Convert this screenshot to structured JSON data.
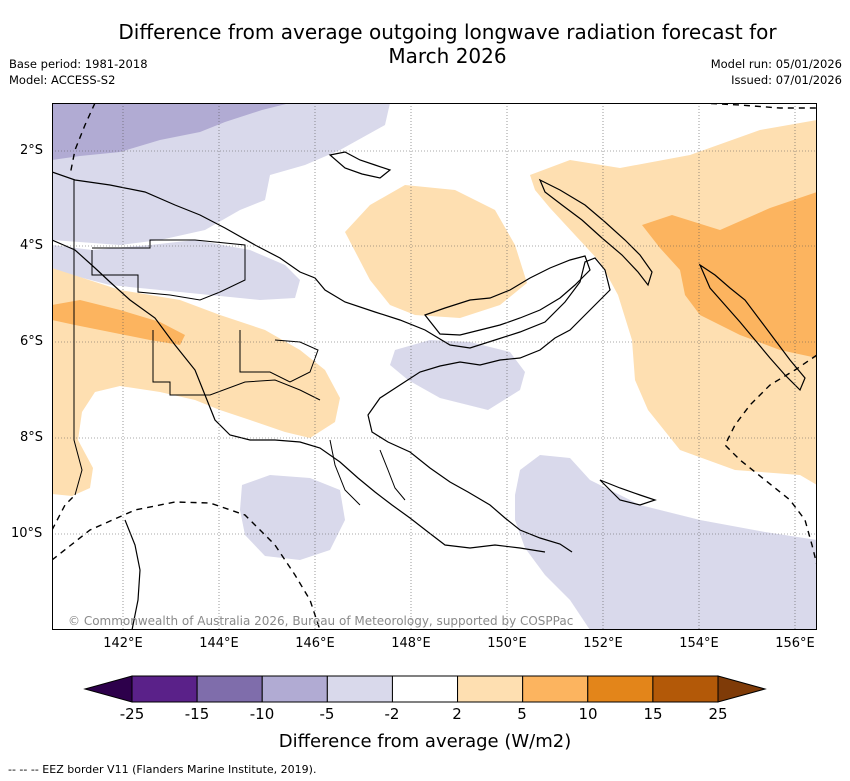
{
  "header": {
    "title_line1": "Difference from average outgoing longwave radiation forecast for",
    "title_line2": "March 2026",
    "base_period": "Base period: 1981-2018",
    "model": "Model: ACCESS-S2",
    "model_run": "Model run: 05/01/2026",
    "issued": "Issued: 07/01/2026"
  },
  "map": {
    "y_axis_labels": [
      "2°S",
      "4°S",
      "6°S",
      "8°S",
      "10°S"
    ],
    "x_axis_labels": [
      "142°E",
      "144°E",
      "146°E",
      "148°E",
      "150°E",
      "152°E",
      "154°E",
      "156°E"
    ],
    "copyright": "© Commonwealth of Australia 2026, Bureau of Meteorology, supported by COSPPac"
  },
  "colorbar": {
    "tick_labels": [
      "-25",
      "-15",
      "-10",
      "-5",
      "-2",
      "2",
      "5",
      "10",
      "15",
      "25"
    ],
    "colors": [
      "#5a2189",
      "#7f6dab",
      "#b1abd3",
      "#d9d9eb",
      "#ffffff",
      "#fedfb1",
      "#fcb45f",
      "#e3851a",
      "#b35908"
    ],
    "under_color": "#2d004b",
    "over_color": "#7f3b08",
    "label": "Difference from average (W/m2)"
  },
  "legend": {
    "eez_text": "--  --  -- EEZ border V11 (Flanders Marine Institute, 2019)."
  }
}
